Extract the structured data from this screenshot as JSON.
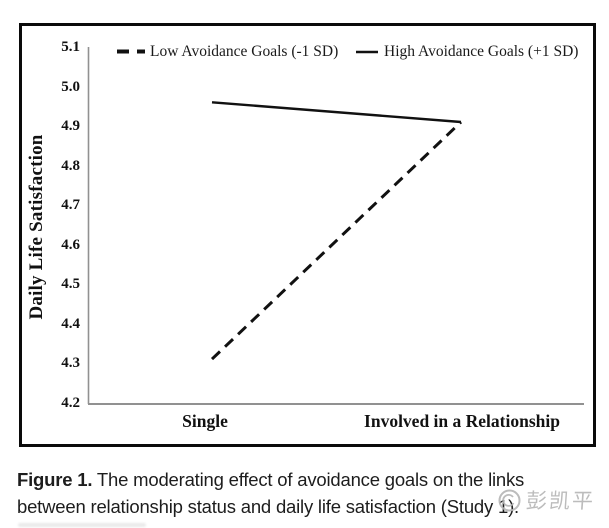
{
  "chart_data": {
    "type": "line",
    "categories": [
      "Single",
      "Involved in a Relationship"
    ],
    "series": [
      {
        "name": "Low Avoidance Goals (-1 SD)",
        "style": "dashed",
        "values": [
          4.31,
          4.91
        ]
      },
      {
        "name": "High Avoidance Goals (+1 SD)",
        "style": "solid",
        "values": [
          4.96,
          4.91
        ]
      }
    ],
    "title": "",
    "xlabel": "",
    "ylabel": "Daily Life Satisfaction",
    "ylim": [
      4.2,
      5.1
    ],
    "yticks": [
      "5.1",
      "5.0",
      "4.9",
      "4.8",
      "4.7",
      "4.6",
      "4.5",
      "4.4",
      "4.3",
      "4.2"
    ],
    "grid": false,
    "legend_position": "top",
    "line_color": "#111111",
    "axis_color": "#919191"
  },
  "legend": {
    "low_label": "Low Avoidance Goals (-1 SD)",
    "high_label": "High Avoidance Goals (+1 SD)"
  },
  "axes": {
    "y_title": "Daily Life Satisfaction",
    "x_label_single": "Single",
    "x_label_involved": "Involved in a Relationship"
  },
  "caption": {
    "label": "Figure 1.",
    "line1": "The moderating effect of avoidance goals on the links",
    "line2": "between relationship status and daily life satisfaction (Study 1)."
  },
  "watermark": {
    "text": "彭凯平",
    "icon": "circular-logo",
    "color": "#b5b5b5"
  }
}
